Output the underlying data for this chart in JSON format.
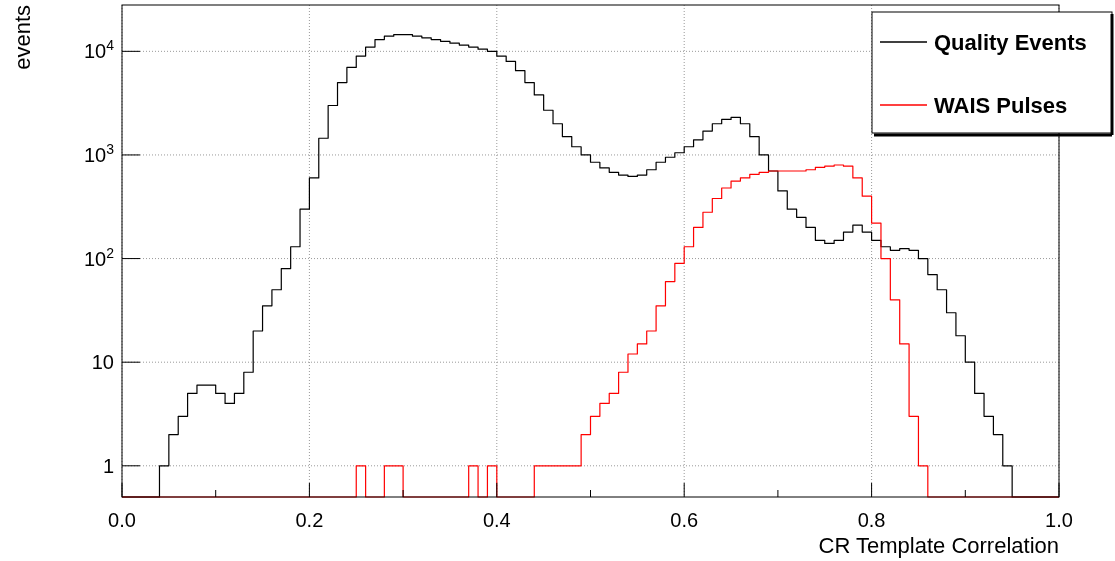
{
  "chart_data": {
    "type": "histogram",
    "xlabel": "CR Template Correlation",
    "ylabel": "events",
    "bins": [
      0,
      0.01,
      0.02,
      0.03,
      0.04,
      0.05,
      0.06,
      0.07,
      0.08,
      0.09,
      0.1,
      0.11,
      0.12,
      0.13,
      0.14,
      0.15,
      0.16,
      0.17,
      0.18,
      0.19,
      0.2,
      0.21,
      0.22,
      0.23,
      0.24,
      0.25,
      0.26,
      0.27,
      0.28,
      0.29,
      0.3,
      0.31,
      0.32,
      0.33,
      0.34,
      0.35,
      0.36,
      0.37,
      0.38,
      0.39,
      0.4,
      0.41,
      0.42,
      0.43,
      0.44,
      0.45,
      0.46,
      0.47,
      0.48,
      0.49,
      0.5,
      0.51,
      0.52,
      0.53,
      0.54,
      0.55,
      0.56,
      0.57,
      0.58,
      0.59,
      0.6,
      0.61,
      0.62,
      0.63,
      0.64,
      0.65,
      0.66,
      0.67,
      0.68,
      0.69,
      0.7,
      0.71,
      0.72,
      0.73,
      0.74,
      0.75,
      0.76,
      0.77,
      0.78,
      0.79,
      0.8,
      0.81,
      0.82,
      0.83,
      0.84,
      0.85,
      0.86,
      0.87,
      0.88,
      0.89,
      0.9,
      0.91,
      0.92,
      0.93,
      0.94,
      0.95,
      0.96,
      0.97,
      0.98,
      0.99,
      1
    ],
    "series": [
      {
        "name": "Quality Events",
        "color": "#000000",
        "values": [
          null,
          null,
          null,
          null,
          1,
          2,
          3,
          5,
          6,
          6,
          5,
          4,
          5,
          8,
          20,
          35,
          50,
          80,
          130,
          300,
          600,
          1450,
          3000,
          5000,
          7000,
          9000,
          11000,
          13000,
          14000,
          14500,
          14500,
          14000,
          13500,
          13000,
          12500,
          12000,
          11500,
          11000,
          10500,
          10000,
          9000,
          8000,
          6500,
          5000,
          3800,
          2700,
          2000,
          1500,
          1200,
          1000,
          850,
          750,
          680,
          640,
          620,
          640,
          720,
          850,
          950,
          1050,
          1200,
          1400,
          1700,
          2000,
          2200,
          2300,
          2000,
          1500,
          1000,
          700,
          450,
          300,
          250,
          200,
          150,
          140,
          150,
          180,
          210,
          180,
          150,
          130,
          120,
          125,
          120,
          100,
          70,
          50,
          30,
          18,
          10,
          5,
          3,
          2,
          1,
          null,
          null,
          null,
          null,
          null
        ]
      },
      {
        "name": "WAIS Pulses",
        "color": "#ff0000",
        "values": [
          null,
          null,
          null,
          null,
          null,
          null,
          null,
          null,
          null,
          null,
          null,
          null,
          null,
          null,
          null,
          null,
          null,
          null,
          null,
          null,
          null,
          null,
          null,
          null,
          null,
          1,
          null,
          null,
          1,
          1,
          null,
          null,
          null,
          null,
          null,
          null,
          null,
          1,
          null,
          1,
          null,
          null,
          null,
          null,
          1,
          1,
          1,
          1,
          1,
          2,
          3,
          4,
          5,
          8,
          12,
          15,
          20,
          35,
          60,
          90,
          130,
          200,
          280,
          380,
          480,
          560,
          600,
          650,
          680,
          700,
          700,
          700,
          700,
          720,
          760,
          780,
          800,
          780,
          600,
          400,
          220,
          100,
          40,
          15,
          3,
          1,
          null,
          null,
          null,
          null,
          null,
          null,
          null,
          null,
          null,
          null,
          null,
          null,
          null,
          null
        ]
      }
    ],
    "log": "y",
    "xlim": [
      0,
      1
    ],
    "ylim": [
      0.5,
      28000
    ],
    "xticks": [
      {
        "value": 0,
        "label": "0.0"
      },
      {
        "value": 0.1,
        "label": null
      },
      {
        "value": 0.2,
        "label": "0.2"
      },
      {
        "value": 0.3,
        "label": null
      },
      {
        "value": 0.4,
        "label": "0.4"
      },
      {
        "value": 0.5,
        "label": null
      },
      {
        "value": 0.6,
        "label": "0.6"
      },
      {
        "value": 0.7,
        "label": null
      },
      {
        "value": 0.8,
        "label": "0.8"
      },
      {
        "value": 0.9,
        "label": null
      },
      {
        "value": 1,
        "label": "1.0"
      }
    ],
    "yticks": [
      {
        "value": 1,
        "label": "1"
      },
      {
        "value": 10,
        "label": "10"
      },
      {
        "value": 100,
        "label": "10$^{2}$"
      },
      {
        "value": 1000,
        "label": "10$^{3}$"
      },
      {
        "value": 10000,
        "label": "10$^{4}$"
      }
    ],
    "grid": true,
    "legend": "top right"
  }
}
